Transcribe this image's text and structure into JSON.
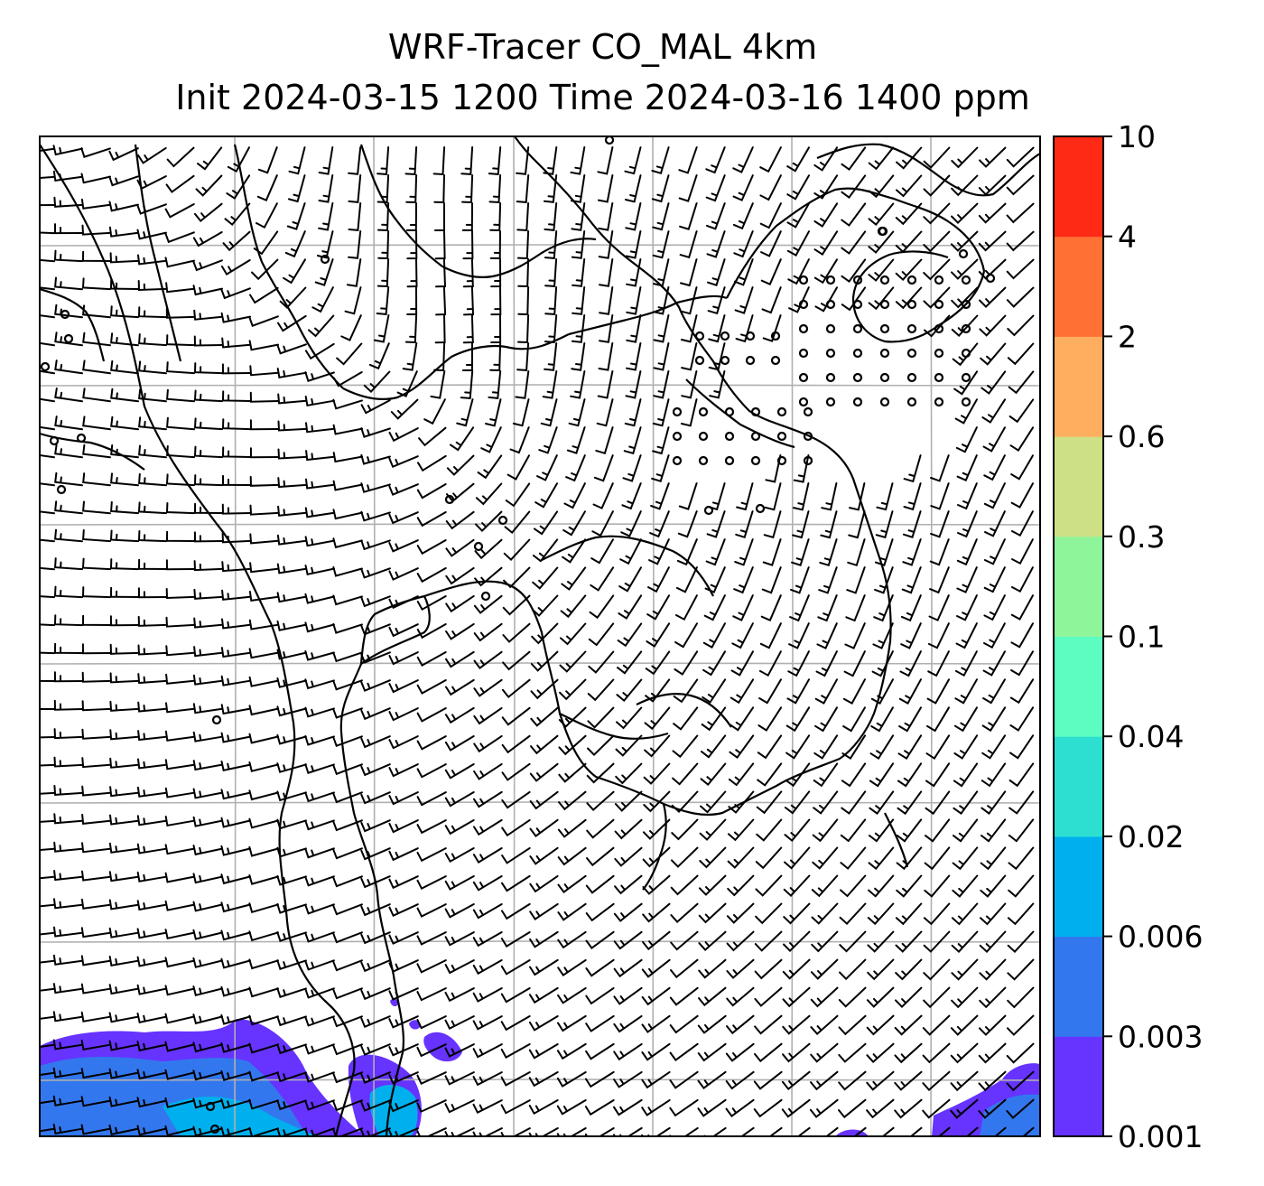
{
  "title": {
    "line1": "WRF-Tracer CO_MAL 4km",
    "line2": "Init 2024-03-15 1200 Time 2024-03-16 1400 ppm"
  },
  "colorbar": {
    "levels": [
      "0.001",
      "0.003",
      "0.006",
      "0.02",
      "0.04",
      "0.1",
      "0.3",
      "0.6",
      "2",
      "4",
      "10"
    ],
    "colors": [
      "#6633ff",
      "#3377ee",
      "#00b0ee",
      "#2ddfd0",
      "#5dfcc0",
      "#8ef59a",
      "#cde085",
      "#ffae60",
      "#ff7035",
      "#ff2a15"
    ]
  },
  "map": {
    "gridlines": true,
    "grid_color": "#b0b0b0",
    "coastline_color": "#000000",
    "wind_barb_color": "#000000",
    "tracer_fill_colors": {
      "lowest": "#6633ff",
      "low": "#3377ee",
      "mid": "#00b0ee",
      "higher": "#2ddfd0"
    }
  }
}
